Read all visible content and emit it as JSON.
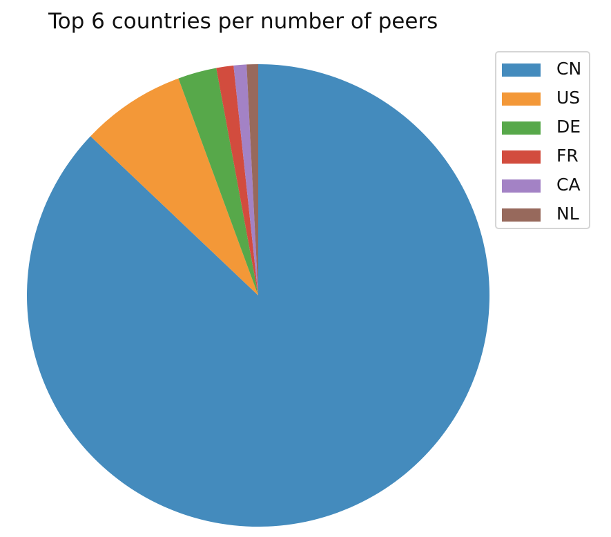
{
  "chart_data": {
    "type": "pie",
    "title": "Top 6 countries per number of peers",
    "legend_position": "top-right",
    "start_angle_deg": 90,
    "direction": "clockwise",
    "slices": [
      {
        "label": "CN",
        "value": 87.0,
        "color": "#448bbd"
      },
      {
        "label": "US",
        "value": 7.3,
        "color": "#f39838"
      },
      {
        "label": "DE",
        "value": 2.7,
        "color": "#57a84a"
      },
      {
        "label": "FR",
        "value": 1.2,
        "color": "#d24c3e"
      },
      {
        "label": "CA",
        "value": 0.9,
        "color": "#a382c5"
      },
      {
        "label": "NL",
        "value": 0.8,
        "color": "#97695c"
      }
    ]
  }
}
